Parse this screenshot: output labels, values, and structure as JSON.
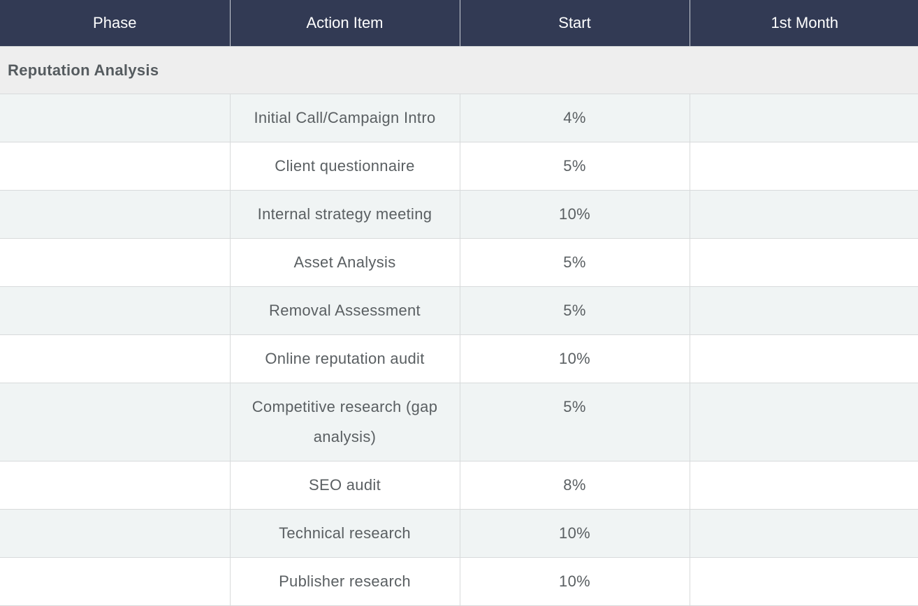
{
  "header": {
    "columns": [
      "Phase",
      "Action Item",
      "Start",
      "1st Month"
    ]
  },
  "section": {
    "title": "Reputation Analysis"
  },
  "rows": [
    {
      "phase": "",
      "action": "Initial Call/Campaign Intro",
      "start": "4%",
      "month1": ""
    },
    {
      "phase": "",
      "action": "Client questionnaire",
      "start": "5%",
      "month1": ""
    },
    {
      "phase": "",
      "action": "Internal strategy meeting",
      "start": "10%",
      "month1": ""
    },
    {
      "phase": "",
      "action": "Asset Analysis",
      "start": "5%",
      "month1": ""
    },
    {
      "phase": "",
      "action": "Removal Assessment",
      "start": "5%",
      "month1": ""
    },
    {
      "phase": "",
      "action": "Online reputation audit",
      "start": "10%",
      "month1": ""
    },
    {
      "phase": "",
      "action": "Competitive research (gap analysis)",
      "start": "5%",
      "month1": ""
    },
    {
      "phase": "",
      "action": "SEO audit",
      "start": "8%",
      "month1": ""
    },
    {
      "phase": "",
      "action": "Technical research",
      "start": "10%",
      "month1": ""
    },
    {
      "phase": "",
      "action": "Publisher research",
      "start": "10%",
      "month1": ""
    }
  ],
  "colors": {
    "header_bg": "#323a54",
    "section_bg": "#eeeeee",
    "stripe_bg": "#f0f4f4"
  }
}
